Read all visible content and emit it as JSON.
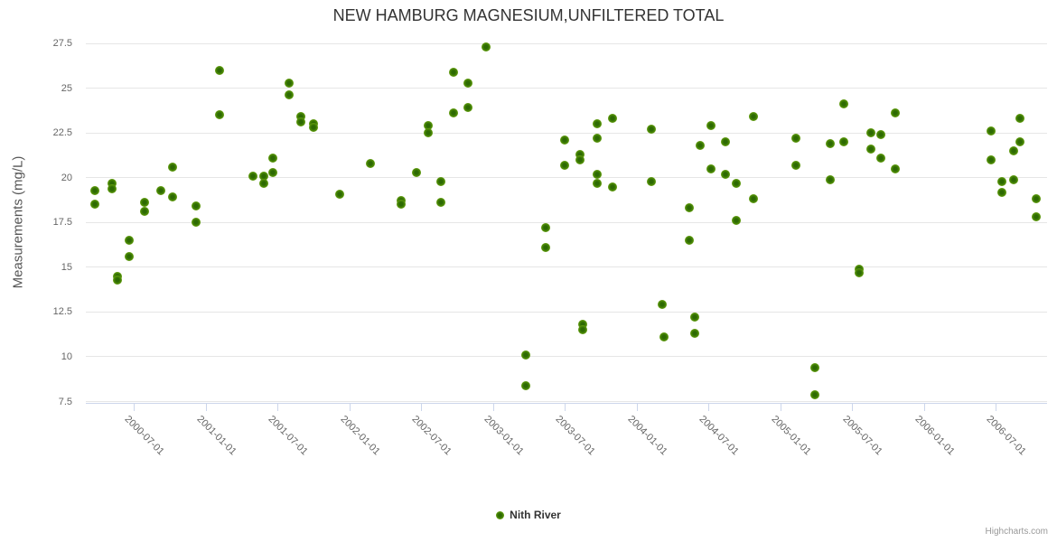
{
  "title": "NEW HAMBURG MAGNESIUM,UNFILTERED TOTAL",
  "credit": "Highcharts.com",
  "legend": {
    "series_label": "Nith River"
  },
  "colors": {
    "title_text": "#333333",
    "axis_label_text": "#666666",
    "axis_title_text": "#555555",
    "gridline": "#e6e6e6",
    "axis_line": "#ccd6eb",
    "point_outer": "#86bb25",
    "point_mid": "#4f8c08",
    "point_inner": "#2d6a03"
  },
  "chart_data": {
    "type": "scatter",
    "title": "NEW HAMBURG MAGNESIUM,UNFILTERED TOTAL",
    "xlabel": "",
    "ylabel": "Measurements (mg/L)",
    "ylim": [
      7.5,
      27.5
    ],
    "y_ticks": [
      27.5,
      25,
      22.5,
      20,
      17.5,
      15,
      12.5,
      10,
      7.5
    ],
    "x_ticks": [
      "2000-07-01",
      "2001-01-01",
      "2001-07-01",
      "2002-01-01",
      "2002-07-01",
      "2003-01-01",
      "2003-07-01",
      "2004-01-01",
      "2004-07-01",
      "2005-01-01",
      "2005-07-01",
      "2006-01-01",
      "2006-07-01"
    ],
    "x_range": [
      "2000-03-01",
      "2006-11-10"
    ],
    "grid": true,
    "legend_position": "bottom-center",
    "series": [
      {
        "name": "Nith River",
        "points": [
          [
            "2000-03-24",
            19.3
          ],
          [
            "2000-03-24",
            18.5
          ],
          [
            "2000-05-06",
            19.7
          ],
          [
            "2000-05-06",
            19.4
          ],
          [
            "2000-05-21",
            14.5
          ],
          [
            "2000-05-21",
            14.3
          ],
          [
            "2000-06-20",
            16.5
          ],
          [
            "2000-06-20",
            15.6
          ],
          [
            "2000-07-28",
            18.6
          ],
          [
            "2000-07-28",
            18.1
          ],
          [
            "2000-09-07",
            19.3
          ],
          [
            "2000-10-08",
            20.6
          ],
          [
            "2000-10-08",
            18.9
          ],
          [
            "2000-12-06",
            18.4
          ],
          [
            "2000-12-06",
            17.5
          ],
          [
            "2001-02-03",
            26.0
          ],
          [
            "2001-02-03",
            23.5
          ],
          [
            "2001-04-30",
            20.1
          ],
          [
            "2001-05-28",
            20.1
          ],
          [
            "2001-05-28",
            19.7
          ],
          [
            "2001-06-20",
            21.1
          ],
          [
            "2001-06-20",
            20.3
          ],
          [
            "2001-08-01",
            25.3
          ],
          [
            "2001-08-01",
            24.6
          ],
          [
            "2001-08-30",
            23.4
          ],
          [
            "2001-08-30",
            23.1
          ],
          [
            "2001-10-01",
            23.0
          ],
          [
            "2001-10-01",
            22.8
          ],
          [
            "2001-12-07",
            19.1
          ],
          [
            "2002-02-22",
            20.8
          ],
          [
            "2002-05-13",
            18.7
          ],
          [
            "2002-05-13",
            18.5
          ],
          [
            "2002-06-19",
            20.3
          ],
          [
            "2002-07-20",
            22.9
          ],
          [
            "2002-07-20",
            22.5
          ],
          [
            "2002-08-21",
            19.8
          ],
          [
            "2002-08-21",
            18.6
          ],
          [
            "2002-09-23",
            25.9
          ],
          [
            "2002-09-23",
            23.6
          ],
          [
            "2002-10-28",
            25.3
          ],
          [
            "2002-10-28",
            23.9
          ],
          [
            "2002-12-14",
            27.3
          ],
          [
            "2003-03-24",
            10.1
          ],
          [
            "2003-03-24",
            8.4
          ],
          [
            "2003-05-15",
            17.2
          ],
          [
            "2003-05-15",
            16.1
          ],
          [
            "2003-07-01",
            22.1
          ],
          [
            "2003-07-01",
            20.7
          ],
          [
            "2003-08-09",
            21.3
          ],
          [
            "2003-08-09",
            21.0
          ],
          [
            "2003-08-16",
            11.8
          ],
          [
            "2003-08-16",
            11.5
          ],
          [
            "2003-09-22",
            23.0
          ],
          [
            "2003-09-22",
            22.2
          ],
          [
            "2003-09-22",
            20.2
          ],
          [
            "2003-09-22",
            19.7
          ],
          [
            "2003-11-01",
            23.3
          ],
          [
            "2003-11-01",
            19.5
          ],
          [
            "2004-02-08",
            22.7
          ],
          [
            "2004-02-08",
            19.8
          ],
          [
            "2004-03-06",
            12.9
          ],
          [
            "2004-03-10",
            11.1
          ],
          [
            "2004-05-14",
            18.3
          ],
          [
            "2004-05-14",
            16.5
          ],
          [
            "2004-05-27",
            12.2
          ],
          [
            "2004-05-27",
            11.3
          ],
          [
            "2004-06-10",
            21.8
          ],
          [
            "2004-07-09",
            22.9
          ],
          [
            "2004-07-09",
            20.5
          ],
          [
            "2004-08-14",
            22.0
          ],
          [
            "2004-08-14",
            20.2
          ],
          [
            "2004-09-10",
            19.7
          ],
          [
            "2004-09-10",
            17.6
          ],
          [
            "2004-10-24",
            23.4
          ],
          [
            "2004-10-24",
            18.8
          ],
          [
            "2005-02-10",
            22.2
          ],
          [
            "2005-02-10",
            20.7
          ],
          [
            "2005-03-29",
            9.4
          ],
          [
            "2005-03-29",
            7.9
          ],
          [
            "2005-05-08",
            21.9
          ],
          [
            "2005-05-08",
            19.9
          ],
          [
            "2005-06-10",
            24.1
          ],
          [
            "2005-06-10",
            22.0
          ],
          [
            "2005-07-20",
            14.9
          ],
          [
            "2005-07-20",
            14.7
          ],
          [
            "2005-08-18",
            22.5
          ],
          [
            "2005-08-18",
            21.6
          ],
          [
            "2005-09-13",
            22.4
          ],
          [
            "2005-09-13",
            21.1
          ],
          [
            "2005-10-21",
            23.6
          ],
          [
            "2005-10-21",
            20.5
          ],
          [
            "2006-06-20",
            22.6
          ],
          [
            "2006-06-20",
            21.0
          ],
          [
            "2006-07-17",
            19.8
          ],
          [
            "2006-07-17",
            19.2
          ],
          [
            "2006-08-17",
            21.5
          ],
          [
            "2006-08-17",
            19.9
          ],
          [
            "2006-09-03",
            23.3
          ],
          [
            "2006-09-03",
            22.0
          ],
          [
            "2006-10-14",
            18.8
          ],
          [
            "2006-10-14",
            17.8
          ]
        ]
      }
    ]
  }
}
